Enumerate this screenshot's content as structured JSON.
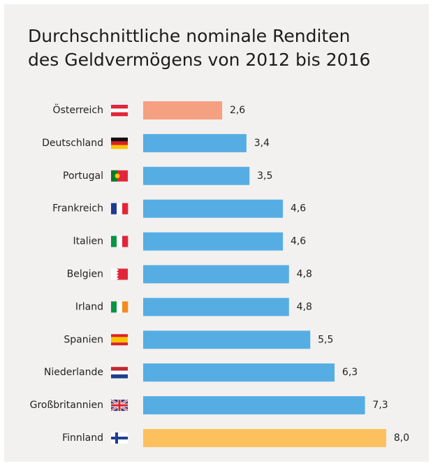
{
  "chart_data": {
    "type": "bar",
    "orientation": "horizontal",
    "title": [
      "Durchschnittliche nominale Renditen",
      "des Geldvermögens von 2012 bis 2016"
    ],
    "categories": [
      "Österreich",
      "Deutschland",
      "Portugal",
      "Frankreich",
      "Italien",
      "Belgien",
      "Irland",
      "Spanien",
      "Niederlande",
      "Großbritannien",
      "Finnland"
    ],
    "values": [
      2.6,
      3.4,
      3.5,
      4.6,
      4.6,
      4.8,
      4.8,
      5.5,
      6.3,
      7.3,
      8.0
    ],
    "value_labels": [
      "2,6",
      "3,4",
      "3,5",
      "4,6",
      "4,6",
      "4,8",
      "4,8",
      "5,5",
      "6,3",
      "7,3",
      "8,0"
    ],
    "colors": [
      "#f4a081",
      "#56ade3",
      "#56ade3",
      "#56ade3",
      "#56ade3",
      "#56ade3",
      "#56ade3",
      "#56ade3",
      "#56ade3",
      "#56ade3",
      "#fcc15e"
    ]
  }
}
